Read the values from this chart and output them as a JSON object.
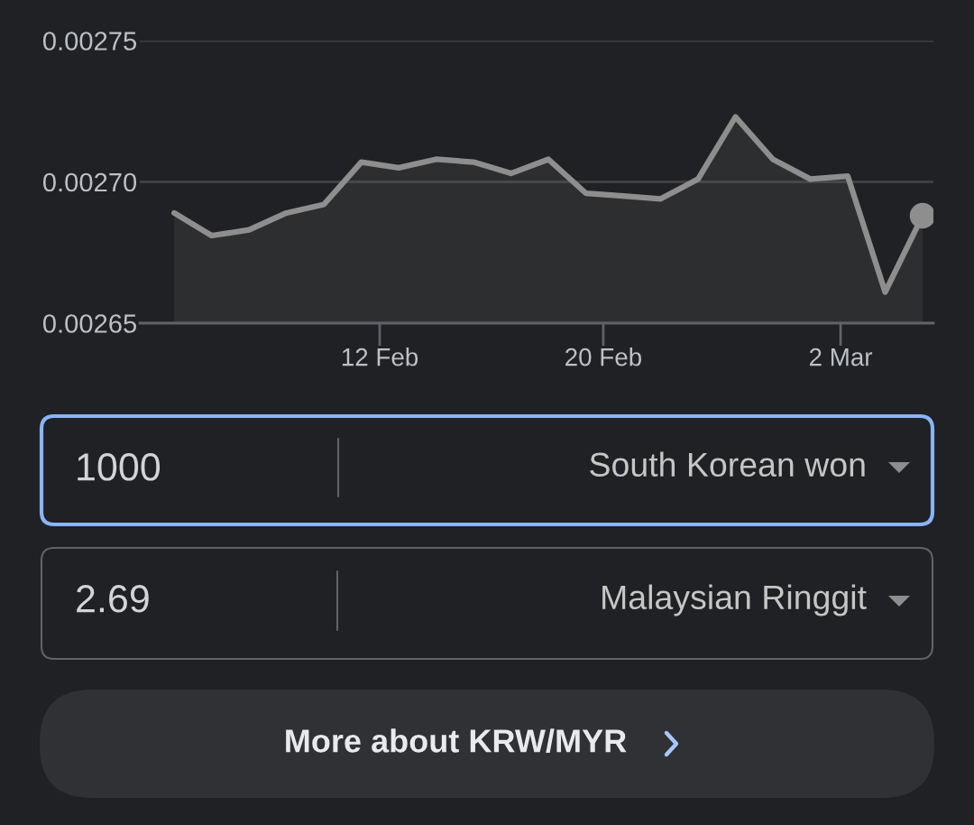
{
  "chart_data": [
    {
      "type": "area",
      "categories": [
        null,
        null,
        null,
        null,
        null,
        null,
        null,
        null,
        null,
        null,
        null,
        null,
        null,
        null,
        null,
        null,
        null,
        null,
        null,
        null,
        null
      ],
      "series": [
        {
          "type": "area",
          "color": "#8e8e8e",
          "values": [
            0.002689,
            0.002681,
            0.002683,
            0.002689,
            0.002692,
            0.002707,
            0.002705,
            0.002708,
            0.002707,
            0.002703,
            0.002708,
            0.002696,
            0.002695,
            0.002694,
            0.002701,
            0.002723,
            0.002708,
            0.002701,
            0.002702,
            0.002661,
            0.002688
          ]
        },
        {
          "type": "scatter",
          "color": "#8e8e8e",
          "marker": "circle",
          "values": [
            null,
            null,
            null,
            null,
            null,
            null,
            null,
            null,
            null,
            null,
            null,
            null,
            null,
            null,
            null,
            null,
            null,
            null,
            null,
            null,
            0.002688
          ]
        }
      ],
      "ylim": [
        0.00265,
        0.00275
      ],
      "yticks": [
        0.00265,
        {
          "value": 0.0027,
          "label": "0.00270"
        },
        0.00275
      ],
      "annotations": [
        "12 Feb",
        "20 Feb",
        "2 Mar"
      ],
      "grid": "y",
      "line_style": "solid"
    },
    {
      "type": "other",
      "annotations": [
        "1000",
        "South Korean won",
        "2.69",
        "Malaysian Ringgit",
        "More about KRW/MYR"
      ]
    }
  ]
}
